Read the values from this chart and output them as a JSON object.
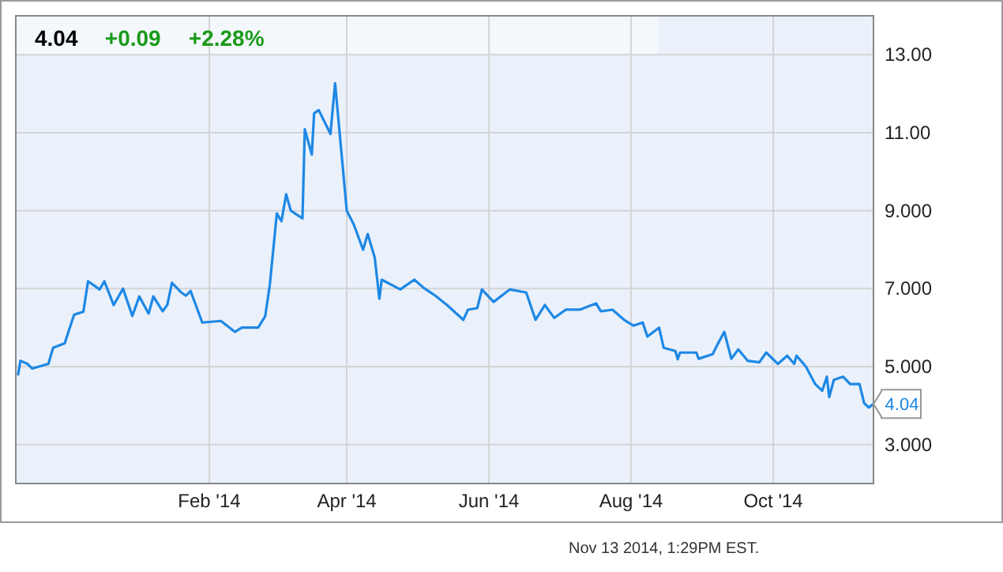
{
  "chart_data": {
    "type": "line",
    "x": [
      "2013-11-11",
      "2013-11-12",
      "2013-11-15",
      "2013-11-17",
      "2013-11-24",
      "2013-11-26",
      "2013-12-01",
      "2013-12-03",
      "2013-12-05",
      "2013-12-09",
      "2013-12-11",
      "2013-12-16",
      "2013-12-18",
      "2013-12-22",
      "2013-12-26",
      "2013-12-30",
      "2014-01-02",
      "2014-01-06",
      "2014-01-08",
      "2014-01-12",
      "2014-01-14",
      "2014-01-16",
      "2014-01-20",
      "2014-01-22",
      "2014-01-24",
      "2014-01-29",
      "2014-02-06",
      "2014-02-12",
      "2014-02-15",
      "2014-02-22",
      "2014-02-25",
      "2014-02-27",
      "2014-03-02",
      "2014-03-04",
      "2014-03-06",
      "2014-03-08",
      "2014-03-13",
      "2014-03-14",
      "2014-03-17",
      "2014-03-18",
      "2014-03-20",
      "2014-03-25",
      "2014-03-27",
      "2014-04-01",
      "2014-04-04",
      "2014-04-08",
      "2014-04-10",
      "2014-04-13",
      "2014-04-15",
      "2014-04-16",
      "2014-04-24",
      "2014-04-30",
      "2014-05-04",
      "2014-05-09",
      "2014-05-14",
      "2014-05-21",
      "2014-05-23",
      "2014-05-27",
      "2014-05-29",
      "2014-06-03",
      "2014-06-10",
      "2014-06-17",
      "2014-06-21",
      "2014-06-25",
      "2014-06-29",
      "2014-07-04",
      "2014-07-10",
      "2014-07-17",
      "2014-07-19",
      "2014-07-24",
      "2014-07-29",
      "2014-08-02",
      "2014-08-06",
      "2014-08-08",
      "2014-08-13",
      "2014-08-15",
      "2014-08-20",
      "2014-08-21",
      "2014-08-22",
      "2014-08-29",
      "2014-08-30",
      "2014-09-05",
      "2014-09-07",
      "2014-09-10",
      "2014-09-13",
      "2014-09-16",
      "2014-09-20",
      "2014-09-25",
      "2014-09-28",
      "2014-10-03",
      "2014-10-07",
      "2014-10-10",
      "2014-10-11",
      "2014-10-15",
      "2014-10-19",
      "2014-10-22",
      "2014-10-24",
      "2014-10-25",
      "2014-10-27",
      "2014-10-31",
      "2014-11-03",
      "2014-11-07",
      "2014-11-09",
      "2014-11-11",
      "2014-11-13"
    ],
    "series": [
      {
        "color": "#1e88e5",
        "values": [
          4.8,
          5.15,
          5.07,
          4.95,
          5.07,
          5.48,
          5.6,
          5.97,
          6.33,
          6.41,
          7.19,
          6.98,
          7.19,
          6.58,
          7.0,
          6.3,
          6.8,
          6.36,
          6.8,
          6.42,
          6.58,
          7.15,
          6.9,
          6.82,
          6.94,
          6.13,
          6.17,
          5.89,
          6.0,
          6.0,
          6.29,
          7.1,
          8.93,
          8.73,
          9.42,
          9.0,
          8.8,
          11.09,
          10.44,
          11.5,
          11.58,
          10.97,
          12.27,
          9.0,
          8.65,
          8.0,
          8.4,
          7.8,
          6.74,
          7.23,
          6.98,
          7.23,
          7.02,
          6.82,
          6.58,
          6.2,
          6.46,
          6.5,
          6.98,
          6.66,
          6.98,
          6.9,
          6.2,
          6.58,
          6.25,
          6.46,
          6.46,
          6.62,
          6.42,
          6.46,
          6.2,
          6.05,
          6.13,
          5.77,
          6.0,
          5.48,
          5.4,
          5.19,
          5.36,
          5.36,
          5.2,
          5.32,
          5.56,
          5.89,
          5.2,
          5.44,
          5.15,
          5.11,
          5.36,
          5.07,
          5.28,
          5.07,
          5.28,
          5.0,
          4.55,
          4.38,
          4.74,
          4.22,
          4.66,
          4.74,
          4.55,
          4.55,
          4.06,
          3.95,
          4.04
        ]
      }
    ],
    "xlim": [
      "2013-11-10",
      "2014-11-13"
    ],
    "xticks": [
      {
        "value": "2014-02-01",
        "label": "Feb '14"
      },
      {
        "value": "2014-04-01",
        "label": "Apr '14"
      },
      {
        "value": "2014-06-01",
        "label": "Jun '14"
      },
      {
        "value": "2014-08-01",
        "label": "Aug '14"
      },
      {
        "value": "2014-10-01",
        "label": "Oct '14"
      }
    ],
    "ylim": [
      2,
      14
    ],
    "yticks": [
      {
        "value": 3,
        "label": "3.000"
      },
      {
        "value": 5,
        "label": "5.000"
      },
      {
        "value": 7,
        "label": "7.000"
      },
      {
        "value": 9,
        "label": "9.000"
      },
      {
        "value": 11,
        "label": "11.00"
      },
      {
        "value": 13,
        "label": "13.00"
      }
    ],
    "grid": true,
    "marker": "none",
    "line_style": "solid",
    "annotations": [
      "4.04",
      "+0.09",
      "+2.28%",
      {
        "text": "4.04",
        "x": "2014-11-13",
        "y": 4.04
      },
      "Nov 13 2014, 1:29PM EST."
    ]
  }
}
